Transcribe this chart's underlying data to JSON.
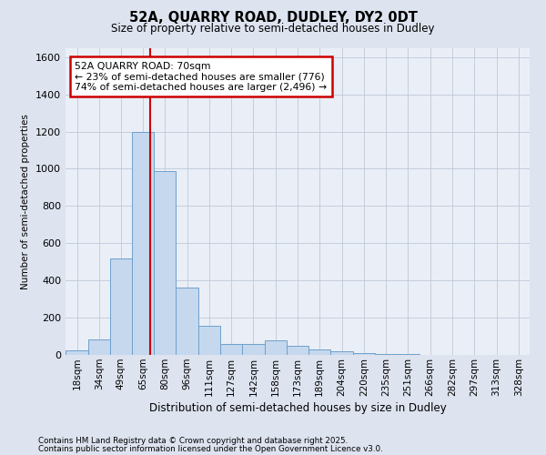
{
  "title": "52A, QUARRY ROAD, DUDLEY, DY2 0DT",
  "subtitle": "Size of property relative to semi-detached houses in Dudley",
  "xlabel": "Distribution of semi-detached houses by size in Dudley",
  "ylabel": "Number of semi-detached properties",
  "footnote1": "Contains HM Land Registry data © Crown copyright and database right 2025.",
  "footnote2": "Contains public sector information licensed under the Open Government Licence v3.0.",
  "property_size": 70,
  "annotation_title": "52A QUARRY ROAD: 70sqm",
  "annotation_line1": "← 23% of semi-detached houses are smaller (776)",
  "annotation_line2": "74% of semi-detached houses are larger (2,496) →",
  "bar_color": "#c5d8ee",
  "bar_edge_color": "#6fa0cc",
  "red_line_color": "#cc0000",
  "background_color": "#dde3ef",
  "plot_bg_color": "#eaeff7",
  "categories": [
    "18sqm",
    "34sqm",
    "49sqm",
    "65sqm",
    "80sqm",
    "96sqm",
    "111sqm",
    "127sqm",
    "142sqm",
    "158sqm",
    "173sqm",
    "189sqm",
    "204sqm",
    "220sqm",
    "235sqm",
    "251sqm",
    "266sqm",
    "282sqm",
    "297sqm",
    "313sqm",
    "328sqm"
  ],
  "bin_edges": [
    10.5,
    26.5,
    41.5,
    57.0,
    72.5,
    88.0,
    103.5,
    119.0,
    134.5,
    150.0,
    165.5,
    181.0,
    196.5,
    212.0,
    227.5,
    243.0,
    258.5,
    274.0,
    289.5,
    305.0,
    320.5,
    336.0
  ],
  "values": [
    25,
    85,
    520,
    1200,
    990,
    360,
    155,
    60,
    60,
    80,
    50,
    30,
    20,
    10,
    5,
    3,
    2,
    1,
    1,
    0,
    0
  ],
  "ylim": [
    0,
    1650
  ],
  "yticks": [
    0,
    200,
    400,
    600,
    800,
    1000,
    1200,
    1400,
    1600
  ],
  "grid_color": "#c0c8d8"
}
